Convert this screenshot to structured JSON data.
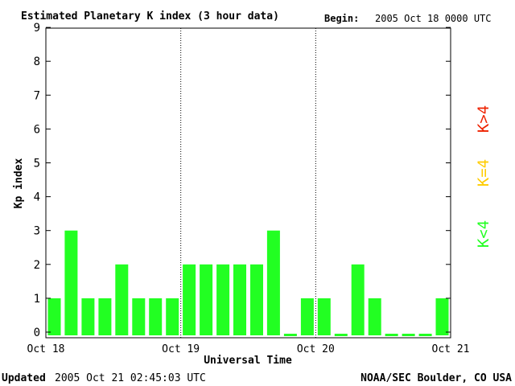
{
  "header": {
    "title": "Estimated Planetary K index (3 hour data)",
    "begin_label": "Begin:",
    "begin_value": "2005 Oct 18 0000 UTC"
  },
  "footer": {
    "updated_label": "Updated",
    "updated_value": "2005 Oct 21 02:45:03 UTC",
    "source": "NOAA/SEC Boulder, CO USA"
  },
  "legend": {
    "low": "K<4",
    "mid": "K=4",
    "high": "K>4"
  },
  "colors": {
    "low": "#22ff22",
    "mid": "#ffcc00",
    "high": "#ee2200"
  },
  "chart_data": {
    "type": "bar",
    "title": "Estimated Planetary K index (3 hour data)",
    "xlabel": "Universal Time",
    "ylabel": "Kp index",
    "ylim": [
      0,
      9
    ],
    "yticks": [
      "0",
      "1",
      "2",
      "3",
      "4",
      "5",
      "6",
      "7",
      "8",
      "9"
    ],
    "xticks": [
      "Oct 18",
      "Oct 19",
      "Oct 20",
      "Oct 21"
    ],
    "grid": false,
    "day_separators": true,
    "values": [
      1,
      3,
      1,
      1,
      2,
      1,
      1,
      1,
      2,
      2,
      2,
      2,
      2,
      3,
      0,
      1,
      1,
      0,
      2,
      1,
      0,
      0,
      0,
      1
    ]
  }
}
